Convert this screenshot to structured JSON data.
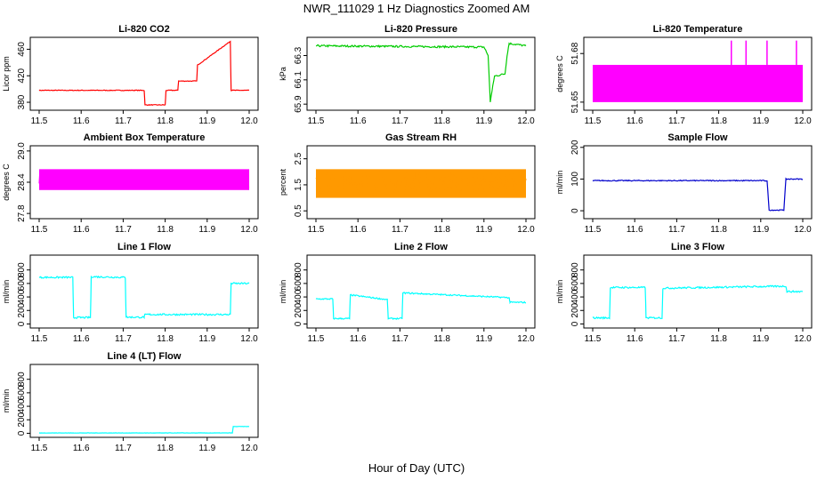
{
  "figure": {
    "title": "NWR_111029  1 Hz Diagnostics Zoomed AM",
    "xlabel": "Hour of Day (UTC)"
  },
  "chart_data": [
    {
      "type": "line",
      "title": "Li-820 CO2",
      "ylabel": "Licor ppm",
      "color": "#ff0000",
      "xlim": [
        11.5,
        12.0
      ],
      "ylim": [
        368,
        478
      ],
      "xticks": [
        "11.5",
        "11.6",
        "11.7",
        "11.8",
        "11.9",
        "12.0"
      ],
      "yticks": [
        "380",
        "420",
        "460"
      ],
      "series": [
        {
          "x": [
            11.5,
            11.75,
            11.752,
            11.8,
            11.802,
            11.83,
            11.832,
            11.875,
            11.877,
            11.955,
            11.957,
            12.0
          ],
          "y": [
            398,
            398,
            376,
            376,
            398,
            398,
            412,
            412,
            436,
            472,
            398,
            398
          ],
          "noise": 1
        }
      ]
    },
    {
      "type": "line",
      "title": "Li-820 Pressure",
      "ylabel": "kPa",
      "color": "#00cc00",
      "xlim": [
        11.5,
        12.0
      ],
      "ylim": [
        65.85,
        66.45
      ],
      "xticks": [
        "11.5",
        "11.6",
        "11.7",
        "11.8",
        "11.9",
        "12.0"
      ],
      "yticks": [
        "65.9",
        "66.1",
        "66.3"
      ],
      "series": [
        {
          "x": [
            11.5,
            11.9,
            11.91,
            11.915,
            11.925,
            11.95,
            11.955,
            11.96,
            12.0
          ],
          "y": [
            66.38,
            66.37,
            66.3,
            65.92,
            66.13,
            66.15,
            66.3,
            66.4,
            66.38
          ],
          "noise": 0.015
        }
      ]
    },
    {
      "type": "line",
      "title": "Li-820 Temperature",
      "ylabel": "degrees C",
      "color": "#ff00ff",
      "xlim": [
        11.5,
        12.0
      ],
      "ylim": [
        51.645,
        51.69
      ],
      "xticks": [
        "11.5",
        "11.6",
        "11.7",
        "11.8",
        "11.9",
        "12.0"
      ],
      "yticks": [
        "51.65",
        "51.68"
      ],
      "series": [
        {
          "x": [
            11.5,
            12.0
          ],
          "y": [
            51.66,
            51.66
          ],
          "band": [
            51.65,
            51.673
          ],
          "spikes_x": [
            11.83,
            11.865,
            11.915,
            11.985
          ],
          "spike_to": 51.688
        }
      ]
    },
    {
      "type": "line",
      "title": "Ambient Box Temperature",
      "ylabel": "degrees C",
      "color": "#ff00ff",
      "xlim": [
        11.5,
        12.0
      ],
      "ylim": [
        27.7,
        29.1
      ],
      "xticks": [
        "11.5",
        "11.6",
        "11.7",
        "11.8",
        "11.9",
        "12.0"
      ],
      "yticks": [
        "27.8",
        "28.4",
        "29.0"
      ],
      "series": [
        {
          "x": [
            11.5,
            12.0
          ],
          "y": [
            28.45,
            28.45
          ],
          "band": [
            28.25,
            28.65
          ],
          "noise": 0.35
        }
      ]
    },
    {
      "type": "line",
      "title": "Gas Stream RH",
      "ylabel": "percent",
      "color": "#ff9900",
      "xlim": [
        11.5,
        12.0
      ],
      "ylim": [
        0.2,
        3.0
      ],
      "xticks": [
        "11.5",
        "11.6",
        "11.7",
        "11.8",
        "11.9",
        "12.0"
      ],
      "yticks": [
        "0.5",
        "1.5",
        "2.5"
      ],
      "series": [
        {
          "x": [
            11.5,
            12.0
          ],
          "y": [
            1.55,
            1.55
          ],
          "band": [
            1.0,
            2.1
          ],
          "noise": 1.0
        }
      ]
    },
    {
      "type": "line",
      "title": "Sample Flow",
      "ylabel": "ml/min",
      "color": "#0000cc",
      "xlim": [
        11.5,
        12.0
      ],
      "ylim": [
        -25,
        205
      ],
      "xticks": [
        "11.5",
        "11.6",
        "11.7",
        "11.8",
        "11.9",
        "12.0"
      ],
      "yticks": [
        "0",
        "100",
        "200"
      ],
      "series": [
        {
          "x": [
            11.5,
            11.915,
            11.92,
            11.955,
            11.96,
            12.0
          ],
          "y": [
            95,
            95,
            2,
            2,
            100,
            100
          ],
          "noise": 3
        }
      ]
    },
    {
      "type": "line",
      "title": "Line 1 Flow",
      "ylabel": "ml/min",
      "color": "#00ffff",
      "xlim": [
        11.5,
        12.0
      ],
      "ylim": [
        -60,
        1020
      ],
      "xticks": [
        "11.5",
        "11.6",
        "11.7",
        "11.8",
        "11.9",
        "12.0"
      ],
      "yticks": [
        "0",
        "200",
        "400",
        "600",
        "800"
      ],
      "series": [
        {
          "x": [
            11.5,
            11.58,
            11.582,
            11.622,
            11.624,
            11.705,
            11.707,
            11.75,
            11.752,
            11.955,
            11.957,
            12.0
          ],
          "y": [
            690,
            690,
            95,
            95,
            700,
            690,
            100,
            100,
            140,
            140,
            600,
            600
          ],
          "noise": 25
        }
      ]
    },
    {
      "type": "line",
      "title": "Line 2 Flow",
      "ylabel": "ml/min",
      "color": "#00ffff",
      "xlim": [
        11.5,
        12.0
      ],
      "ylim": [
        -60,
        1020
      ],
      "xticks": [
        "11.5",
        "11.6",
        "11.7",
        "11.8",
        "11.9",
        "12.0"
      ],
      "yticks": [
        "0",
        "200",
        "400",
        "600",
        "800"
      ],
      "series": [
        {
          "x": [
            11.5,
            11.54,
            11.542,
            11.58,
            11.582,
            11.67,
            11.672,
            11.705,
            11.707,
            11.96,
            11.962,
            12.0
          ],
          "y": [
            370,
            370,
            80,
            80,
            430,
            360,
            80,
            80,
            460,
            390,
            320,
            320
          ],
          "noise": 20
        }
      ]
    },
    {
      "type": "line",
      "title": "Line 3 Flow",
      "ylabel": "ml/min",
      "color": "#00ffff",
      "xlim": [
        11.5,
        12.0
      ],
      "ylim": [
        -60,
        1020
      ],
      "xticks": [
        "11.5",
        "11.6",
        "11.7",
        "11.8",
        "11.9",
        "12.0"
      ],
      "yticks": [
        "0",
        "200",
        "400",
        "600",
        "800"
      ],
      "series": [
        {
          "x": [
            11.5,
            11.54,
            11.542,
            11.625,
            11.627,
            11.665,
            11.667,
            11.96,
            11.962,
            12.0
          ],
          "y": [
            90,
            90,
            540,
            540,
            90,
            90,
            530,
            560,
            480,
            480
          ],
          "noise": 25
        }
      ]
    },
    {
      "type": "line",
      "title": "Line 4 (LT) Flow",
      "ylabel": "ml/min",
      "color": "#00ffff",
      "xlim": [
        11.5,
        12.0
      ],
      "ylim": [
        -60,
        1020
      ],
      "xticks": [
        "11.5",
        "11.6",
        "11.7",
        "11.8",
        "11.9",
        "12.0"
      ],
      "yticks": [
        "0",
        "200",
        "400",
        "600",
        "800"
      ],
      "series": [
        {
          "x": [
            11.5,
            11.96,
            11.962,
            12.0
          ],
          "y": [
            5,
            5,
            100,
            100
          ],
          "noise": 4
        }
      ]
    }
  ]
}
